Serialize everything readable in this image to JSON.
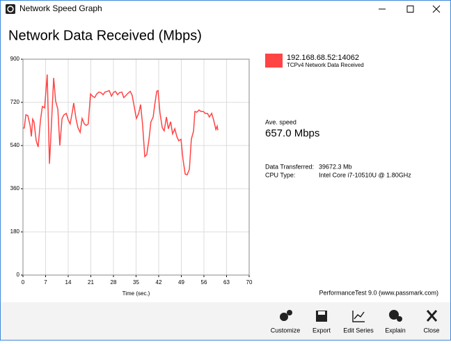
{
  "window": {
    "title": "Network Speed Graph"
  },
  "chart_data": {
    "type": "line",
    "title": "Network Data Received (Mbps)",
    "x_label": "Time (sec.)",
    "x": [
      0,
      0.4,
      0.9,
      1.5,
      2.2,
      2.6,
      3.0,
      3.4,
      4.1,
      4.7,
      5.4,
      6.0,
      6.7,
      7.5,
      8.2,
      8.8,
      9.5,
      10.1,
      10.8,
      11.4,
      12.1,
      12.7,
      13.4,
      14.0,
      14.6,
      15.3,
      15.7,
      16.4,
      17.0,
      17.7,
      18.3,
      19.0,
      19.6,
      20.2,
      20.9,
      21.5,
      22.2,
      22.8,
      23.5,
      24.1,
      24.8,
      25.4,
      26.1,
      26.7,
      27.4,
      28.0,
      28.6,
      29.3,
      29.9,
      30.6,
      31.2,
      31.9,
      32.5,
      33.2,
      33.8,
      34.5,
      35.1,
      35.8,
      36.4,
      37.0,
      37.7,
      38.3,
      39.0,
      39.6,
      40.3,
      40.7,
      41.4,
      41.8,
      42.4,
      43.1,
      43.7,
      44.4,
      45.0,
      45.7,
      46.3,
      47.0,
      47.6,
      48.2,
      48.9,
      49.5,
      50.2,
      50.8,
      51.5,
      52.1,
      52.8,
      53.2,
      53.8,
      54.5,
      55.1,
      55.8,
      56.4,
      57.1,
      57.7,
      58.4,
      59.0,
      59.7,
      60.1,
      60.3
    ],
    "series": [
      {
        "name": "192.168.68.52:14062",
        "color": "#ff4444",
        "values": [
          613,
          613,
          668,
          665,
          624,
          578,
          650,
          639,
          560,
          534,
          644,
          703,
          697,
          836,
          464,
          624,
          822,
          726,
          691,
          540,
          653,
          668,
          674,
          647,
          630,
          682,
          717,
          653,
          615,
          595,
          653,
          630,
          624,
          630,
          755,
          746,
          740,
          755,
          763,
          761,
          752,
          763,
          766,
          769,
          746,
          761,
          766,
          752,
          761,
          763,
          740,
          749,
          758,
          766,
          749,
          697,
          653,
          674,
          711,
          630,
          494,
          502,
          566,
          639,
          659,
          703,
          766,
          769,
          676,
          615,
          601,
          659,
          610,
          639,
          589,
          610,
          578,
          560,
          566,
          485,
          421,
          418,
          441,
          566,
          601,
          682,
          679,
          688,
          682,
          682,
          674,
          674,
          659,
          674,
          647,
          607,
          621,
          604
        ]
      }
    ],
    "legend_subtitle": "TCPv4 Network Data Received",
    "xlim": [
      0,
      70
    ],
    "ylim": [
      0,
      900
    ],
    "xticks": [
      0,
      7,
      14,
      21,
      28,
      35,
      42,
      49,
      56,
      63,
      70
    ],
    "yticks": [
      0,
      180,
      360,
      540,
      720,
      900
    ],
    "grid": true
  },
  "stats": {
    "ave_speed_label": "Ave. speed",
    "ave_speed": "657.0 Mbps",
    "rows": [
      [
        "Data Transferred:",
        "39672.3 Mb"
      ],
      [
        "CPU Type:",
        "Intel Core i7-10510U @ 1.80GHz"
      ]
    ]
  },
  "footer": "PerformanceTest 9.0 (www.passmark.com)",
  "toolbar": [
    "Customize",
    "Export",
    "Edit Series",
    "Explain",
    "Close"
  ]
}
